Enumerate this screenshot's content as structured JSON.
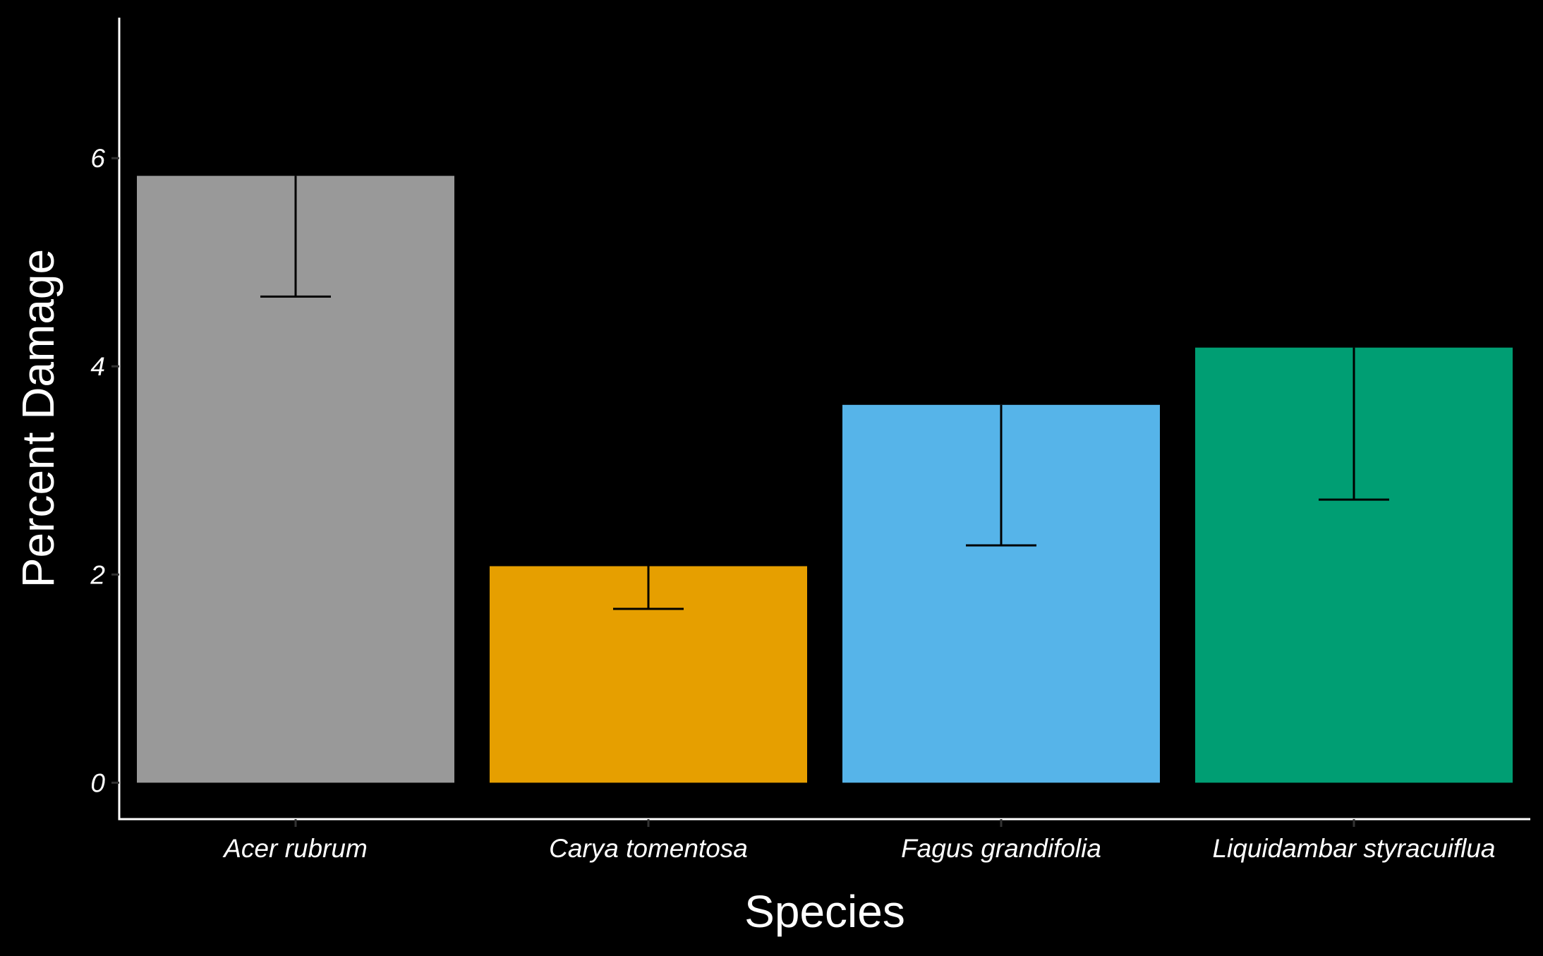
{
  "chart_data": {
    "type": "bar",
    "title": "",
    "xlabel": "Species",
    "ylabel": "Percent Damage",
    "categories": [
      "Acer rubrum",
      "Carya tomentosa",
      "Fagus grandifolia",
      "Liquidambar styracuiflua"
    ],
    "values": [
      5.83,
      2.08,
      3.63,
      4.18
    ],
    "error_lower": [
      4.67,
      1.67,
      2.28,
      2.72
    ],
    "colors": [
      "#999999",
      "#E69F00",
      "#56B4E9",
      "#009E73"
    ],
    "ylim": [
      -0.35,
      7.35
    ],
    "y_ticks": [
      0,
      2,
      4,
      6
    ],
    "y_tick_labels": [
      "0",
      "2",
      "4",
      "6"
    ],
    "grid": false,
    "legend": "none",
    "background": "#000000",
    "axis_color": "#ffffff",
    "errorbar_color": "#000000"
  }
}
